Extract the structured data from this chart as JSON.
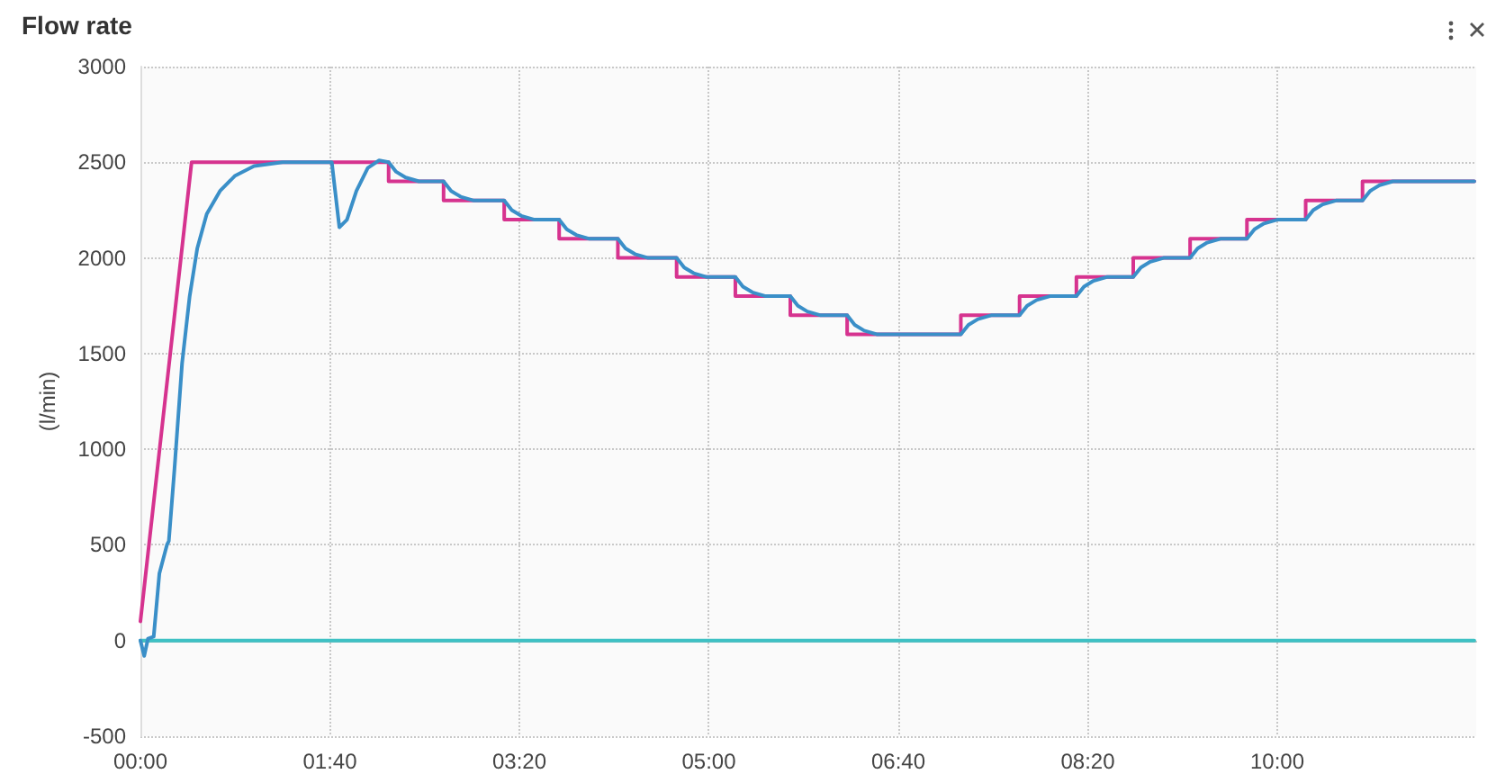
{
  "chart_data": {
    "type": "line",
    "title": "Flow rate",
    "ylabel": "(l/min)",
    "xlim": [
      0,
      705
    ],
    "xticks": [
      {
        "value": 0,
        "label": "00:00"
      },
      {
        "value": 100,
        "label": "01:40"
      },
      {
        "value": 200,
        "label": "03:20"
      },
      {
        "value": 300,
        "label": "05:00"
      },
      {
        "value": 400,
        "label": "06:40"
      },
      {
        "value": 500,
        "label": "08:20"
      },
      {
        "value": 600,
        "label": "10:00"
      }
    ],
    "ylim": [
      -500,
      3000
    ],
    "yticks": [
      -500,
      0,
      500,
      1000,
      1500,
      2000,
      2500,
      3000
    ],
    "grid": true,
    "marker": "none",
    "line_style": "solid",
    "series": [
      {
        "color": "#3ec1c4",
        "x": [
          0,
          704
        ],
        "values": [
          0,
          0
        ]
      },
      {
        "color": "#d6338f",
        "x": [
          0,
          27,
          131,
          131,
          160,
          160,
          192,
          192,
          221,
          221,
          252,
          252,
          283,
          283,
          314,
          314,
          343,
          343,
          373,
          373,
          433,
          433,
          464,
          464,
          494,
          494,
          524,
          524,
          554,
          554,
          584,
          584,
          615,
          615,
          645,
          645,
          704
        ],
        "values": [
          100,
          2500,
          2500,
          2400,
          2400,
          2300,
          2300,
          2200,
          2200,
          2100,
          2100,
          2000,
          2000,
          1900,
          1900,
          1800,
          1800,
          1700,
          1700,
          1600,
          1600,
          1700,
          1700,
          1800,
          1800,
          1900,
          1900,
          2000,
          2000,
          2100,
          2100,
          2200,
          2200,
          2300,
          2300,
          2400,
          2400
        ]
      },
      {
        "color": "#3a8fc8",
        "x": [
          0,
          2,
          4,
          7,
          10,
          14,
          15,
          18,
          22,
          26,
          30,
          35,
          42,
          50,
          60,
          75,
          90,
          101,
          105,
          109,
          114,
          120,
          126,
          131,
          135,
          140,
          147,
          160,
          164,
          169,
          176,
          192,
          196,
          201,
          208,
          221,
          225,
          230,
          237,
          252,
          256,
          261,
          268,
          283,
          287,
          292,
          299,
          314,
          318,
          323,
          330,
          343,
          347,
          352,
          359,
          373,
          377,
          382,
          389,
          433,
          437,
          442,
          449,
          464,
          468,
          473,
          480,
          494,
          498,
          503,
          510,
          524,
          528,
          533,
          540,
          554,
          558,
          563,
          570,
          584,
          588,
          593,
          600,
          615,
          619,
          624,
          631,
          645,
          649,
          654,
          661,
          704
        ],
        "values": [
          0,
          -80,
          10,
          20,
          350,
          500,
          520,
          900,
          1450,
          1800,
          2050,
          2230,
          2350,
          2430,
          2480,
          2500,
          2500,
          2500,
          2160,
          2200,
          2350,
          2470,
          2510,
          2500,
          2450,
          2420,
          2400,
          2400,
          2350,
          2320,
          2300,
          2300,
          2250,
          2220,
          2200,
          2200,
          2150,
          2120,
          2100,
          2100,
          2050,
          2020,
          2000,
          2000,
          1950,
          1920,
          1900,
          1900,
          1850,
          1820,
          1800,
          1800,
          1750,
          1720,
          1700,
          1700,
          1650,
          1620,
          1600,
          1600,
          1650,
          1680,
          1700,
          1700,
          1750,
          1780,
          1800,
          1800,
          1850,
          1880,
          1900,
          1900,
          1950,
          1980,
          2000,
          2000,
          2050,
          2080,
          2100,
          2100,
          2150,
          2180,
          2200,
          2200,
          2250,
          2280,
          2300,
          2300,
          2350,
          2380,
          2400,
          2400
        ]
      }
    ]
  }
}
